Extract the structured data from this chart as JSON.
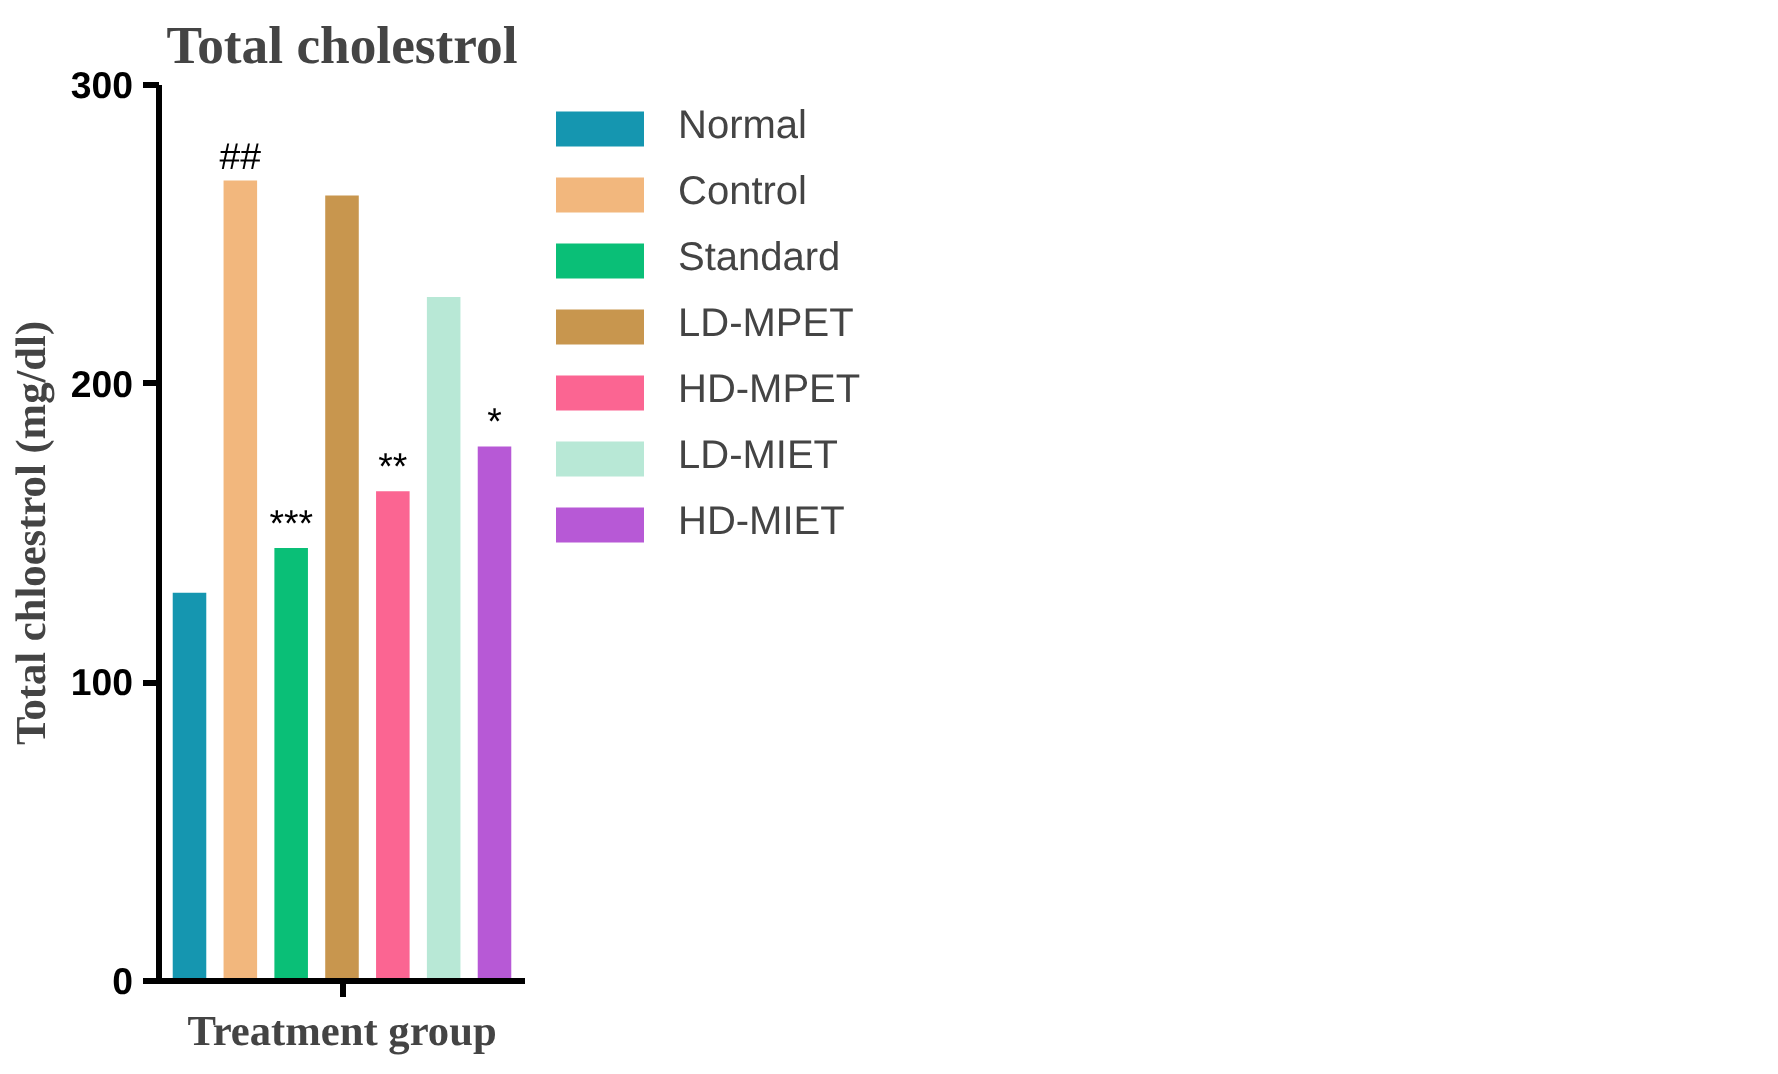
{
  "chart_data": {
    "type": "bar",
    "title": "Total cholestrol",
    "xlabel": "Treatment group",
    "ylabel": "Total chloestrol (mg/dl)",
    "categories": [
      null,
      null,
      null,
      null,
      null,
      null,
      null
    ],
    "series": [
      {
        "name": "Normal",
        "color": "#1596b0",
        "values": [
          130,
          null,
          null,
          null,
          null,
          null,
          null
        ]
      },
      {
        "name": "Control",
        "color": "#f2b77d",
        "values": [
          null,
          268,
          null,
          null,
          null,
          null,
          null
        ],
        "value_labels": [
          null,
          "##",
          null,
          null,
          null,
          null,
          null
        ]
      },
      {
        "name": "Standard",
        "color": "#0abf77",
        "values": [
          null,
          null,
          145,
          null,
          null,
          null,
          null
        ],
        "value_labels": [
          null,
          null,
          "***",
          null,
          null,
          null,
          null
        ]
      },
      {
        "name": "LD-MPET",
        "color": "#c8964e",
        "values": [
          null,
          null,
          null,
          263,
          null,
          null,
          null
        ]
      },
      {
        "name": "HD-MPET",
        "color": "#fb6592",
        "values": [
          null,
          null,
          null,
          null,
          164,
          null,
          null
        ],
        "value_labels": [
          null,
          null,
          null,
          null,
          "**",
          null,
          null
        ]
      },
      {
        "name": "LD-MIET",
        "color": "#b8e8d6",
        "values": [
          null,
          null,
          null,
          null,
          null,
          229,
          null
        ]
      },
      {
        "name": "HD-MIET",
        "color": "#b759d6",
        "values": [
          null,
          null,
          null,
          null,
          null,
          null,
          179
        ],
        "value_labels": [
          null,
          null,
          null,
          null,
          null,
          null,
          "*"
        ]
      }
    ],
    "ylim": [
      0,
      300
    ],
    "yticks": [
      0,
      100,
      200,
      300
    ],
    "grid": false,
    "legend": "right",
    "tick_labels": "y"
  }
}
